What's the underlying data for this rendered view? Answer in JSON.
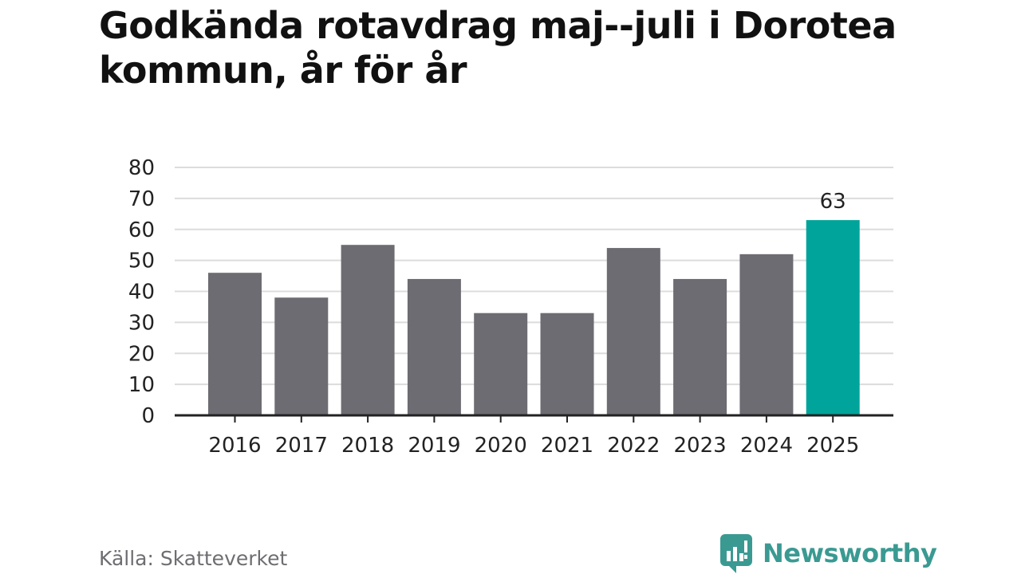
{
  "title": "Godkända rotavdrag maj--juli i Dorotea kommun, år för år",
  "source": "Källa: Skatteverket",
  "logo_text": "Newsworthy",
  "colors": {
    "bar": "#6d6c72",
    "highlight": "#00a49a",
    "grid": "#dcdcdc",
    "axis": "#222222",
    "text": "#222222"
  },
  "chart_data": {
    "type": "bar",
    "title": "Godkända rotavdrag maj--juli i Dorotea kommun, år för år",
    "xlabel": "",
    "ylabel": "",
    "categories": [
      "2016",
      "2017",
      "2018",
      "2019",
      "2020",
      "2021",
      "2022",
      "2023",
      "2024",
      "2025"
    ],
    "values": [
      46,
      38,
      55,
      44,
      33,
      33,
      54,
      44,
      52,
      63
    ],
    "ylim": [
      0,
      80
    ],
    "yticks": [
      0,
      10,
      20,
      30,
      40,
      50,
      60,
      70,
      80
    ],
    "highlight_category": "2025",
    "data_labels": [
      {
        "category": "2025",
        "text": "63"
      }
    ],
    "grid": true,
    "legend": "none"
  }
}
